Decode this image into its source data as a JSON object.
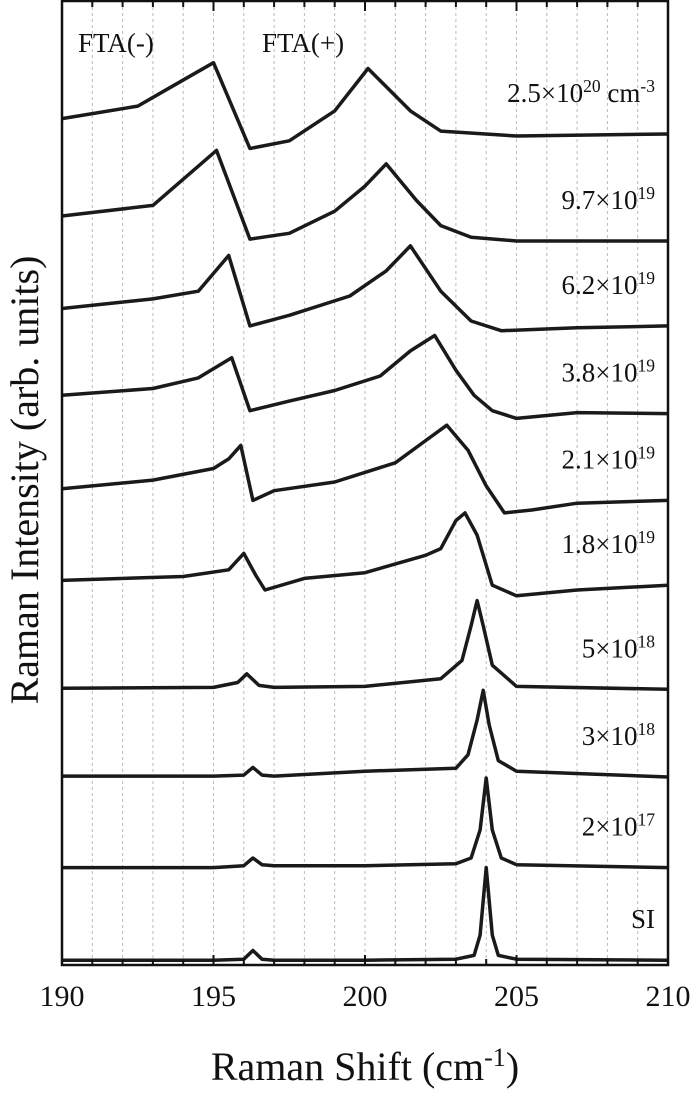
{
  "chart_data": {
    "type": "line",
    "xlabel": [
      "Raman Shift (cm",
      "-1",
      ")"
    ],
    "ylabel": "Raman Intensity (arb. units)",
    "annotations": [
      "FTA(-)",
      "FTA(+)"
    ],
    "xlim": [
      190,
      210
    ],
    "ylim": [
      0,
      100
    ],
    "xticks": [
      190,
      195,
      200,
      205,
      210
    ],
    "xminorticks": [
      191,
      192,
      193,
      194,
      196,
      197,
      198,
      199,
      201,
      202,
      203,
      204,
      206,
      207,
      208,
      209
    ],
    "grid": true,
    "series": [
      {
        "name": [
          "2.5×10",
          "20",
          " cm",
          "-3"
        ],
        "color": "#1a1a1a",
        "x": [
          190,
          192.5,
          193.5,
          195,
          196.2,
          197.5,
          199,
          200.1,
          201.5,
          202.5,
          205,
          210
        ],
        "values": [
          87.8,
          89.1,
          90.9,
          93.6,
          84.7,
          85.5,
          88.6,
          93.0,
          88.6,
          86.5,
          86.0,
          86.2
        ]
      },
      {
        "name": [
          "9.7×10",
          "19"
        ],
        "color": "#1a1a1a",
        "x": [
          190,
          193,
          195.1,
          196.2,
          197.5,
          199,
          200,
          200.7,
          201.7,
          202.5,
          203.5,
          205,
          210
        ],
        "values": [
          77.7,
          78.8,
          84.5,
          75.3,
          75.9,
          78.2,
          80.8,
          83.1,
          79.3,
          76.7,
          75.5,
          75.1,
          75.1
        ]
      },
      {
        "name": [
          "6.2×10",
          "19"
        ],
        "color": "#1a1a1a",
        "x": [
          190,
          193,
          194.5,
          195.5,
          196.2,
          197.5,
          199.5,
          200.7,
          201.5,
          202.5,
          203.5,
          204.5,
          207,
          210
        ],
        "values": [
          68.1,
          69.1,
          69.9,
          73.6,
          66.3,
          67.4,
          69.4,
          72.0,
          74.6,
          69.9,
          66.8,
          65.8,
          66.1,
          66.3
        ]
      },
      {
        "name": [
          "3.8×10",
          "19"
        ],
        "color": "#1a1a1a",
        "x": [
          190,
          193,
          194.5,
          195.6,
          196.2,
          197.5,
          199,
          200.5,
          201.5,
          202.3,
          203,
          203.6,
          204.2,
          205,
          207,
          210
        ],
        "values": [
          59.1,
          59.8,
          60.9,
          63.0,
          57.5,
          58.5,
          59.6,
          61.1,
          63.7,
          65.3,
          61.7,
          59.1,
          57.5,
          56.7,
          57.3,
          57.2
        ]
      },
      {
        "name": [
          "2.1×10",
          "19"
        ],
        "color": "#1a1a1a",
        "x": [
          190,
          193,
          195,
          195.5,
          195.9,
          196.3,
          197,
          199,
          201,
          202,
          202.7,
          203.4,
          204,
          204.6,
          205.5,
          207,
          210
        ],
        "values": [
          49.4,
          50.3,
          51.5,
          52.5,
          53.9,
          48.2,
          49.2,
          50.1,
          52.1,
          54.4,
          56.0,
          53.4,
          49.7,
          46.9,
          47.2,
          47.9,
          48.2
        ]
      },
      {
        "name": [
          "1.8×10",
          "19"
        ],
        "color": "#1a1a1a",
        "x": [
          190,
          194,
          195.5,
          196,
          196.4,
          196.7,
          198,
          200,
          202,
          202.5,
          203,
          203.3,
          203.7,
          204.2,
          205,
          207,
          210
        ],
        "values": [
          39.9,
          40.3,
          41.0,
          42.7,
          40.4,
          38.9,
          40.1,
          40.7,
          42.5,
          43.2,
          46.1,
          46.9,
          44.6,
          39.4,
          38.3,
          38.9,
          39.4
        ]
      },
      {
        "name": [
          "5×10",
          "18"
        ],
        "color": "#1a1a1a",
        "x": [
          190,
          195,
          195.8,
          196.1,
          196.5,
          197,
          200,
          202.5,
          203.2,
          203.5,
          203.7,
          203.9,
          204.2,
          205,
          210
        ],
        "values": [
          28.7,
          28.8,
          29.3,
          30.2,
          29.0,
          28.8,
          28.9,
          29.7,
          31.6,
          35.2,
          37.8,
          35.2,
          31.1,
          28.9,
          28.6
        ]
      },
      {
        "name": [
          "3×10",
          "18"
        ],
        "color": "#1a1a1a",
        "x": [
          190,
          195,
          196,
          196.3,
          196.6,
          197,
          200,
          203,
          203.4,
          203.7,
          203.9,
          204.1,
          204.4,
          205,
          210
        ],
        "values": [
          19.6,
          19.6,
          19.7,
          20.5,
          19.7,
          19.6,
          20.1,
          20.4,
          21.8,
          25.4,
          28.5,
          24.9,
          21.2,
          20.1,
          19.5
        ]
      },
      {
        "name": [
          "2×10",
          "17"
        ],
        "color": "#1a1a1a",
        "x": [
          190,
          195,
          196,
          196.3,
          196.6,
          197,
          200,
          203,
          203.5,
          203.8,
          204,
          204.2,
          204.5,
          205,
          210
        ],
        "values": [
          10.1,
          10.1,
          10.3,
          11.1,
          10.4,
          10.3,
          10.3,
          10.5,
          11.1,
          14.0,
          19.4,
          14.0,
          11.1,
          10.4,
          10.1
        ]
      },
      {
        "name": [
          "SI"
        ],
        "color": "#1a1a1a",
        "x": [
          190,
          195,
          196,
          196.3,
          196.6,
          197,
          200,
          203,
          203.6,
          203.8,
          204,
          204.2,
          204.4,
          205,
          210
        ],
        "values": [
          0.5,
          0.5,
          0.6,
          1.5,
          0.6,
          0.5,
          0.5,
          0.6,
          1.0,
          3.1,
          10.1,
          3.1,
          1.0,
          0.6,
          0.5
        ]
      }
    ]
  }
}
